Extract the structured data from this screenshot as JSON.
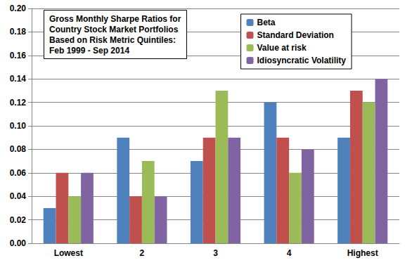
{
  "chart_data": {
    "type": "bar",
    "title": "Gross Monthly Sharpe Ratios for\nCountry Stock Market Portfolios\nBased on Risk Metric Quintiles:\nFeb 1999 - Sep 2014",
    "categories": [
      "Lowest",
      "2",
      "3",
      "4",
      "Highest"
    ],
    "series": [
      {
        "name": "Beta",
        "color": "#4F81BD",
        "values": [
          0.03,
          0.09,
          0.07,
          0.12,
          0.09
        ]
      },
      {
        "name": "Standard Deviation",
        "color": "#C0504D",
        "values": [
          0.06,
          0.04,
          0.09,
          0.09,
          0.13
        ]
      },
      {
        "name": "Value at risk",
        "color": "#9BBB59",
        "values": [
          0.04,
          0.07,
          0.13,
          0.06,
          0.12
        ]
      },
      {
        "name": "Idiosyncratic Volatility",
        "color": "#8064A2",
        "values": [
          0.06,
          0.04,
          0.09,
          0.08,
          0.14
        ]
      }
    ],
    "ylim": [
      0,
      0.2
    ],
    "yticks": [
      {
        "value": 0,
        "label": "0.00"
      },
      0.02,
      0.04,
      0.06,
      0.08,
      {
        "value": 0.1,
        "label": "0.10"
      },
      0.12,
      0.14,
      0.16,
      0.18,
      {
        "value": 0.2,
        "label": "0.20"
      }
    ],
    "grid": true,
    "legend": "top-right"
  }
}
